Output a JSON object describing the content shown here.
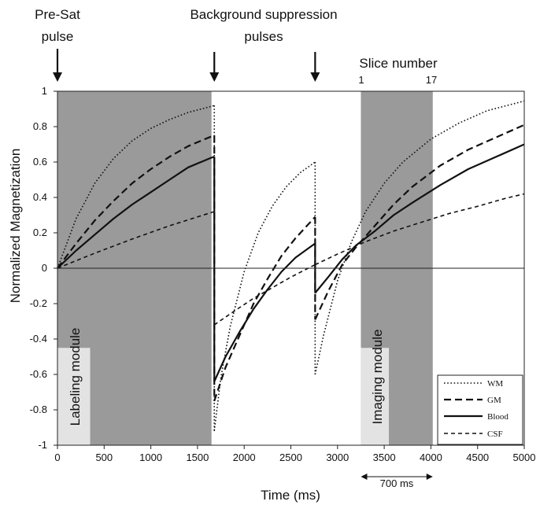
{
  "chart_data": {
    "type": "line",
    "xlabel": "Time (ms)",
    "ylabel": "Normalized Magnetization",
    "xlim": [
      0,
      5000
    ],
    "ylim": [
      -1,
      1
    ],
    "x_ticks": [
      "0",
      "500",
      "1000",
      "1500",
      "2000",
      "2500",
      "3000",
      "3500",
      "4000",
      "4500",
      "5000"
    ],
    "y_ticks": [
      "1",
      "0.8",
      "0.6",
      "0.4",
      "0.2",
      "0",
      "-0.2",
      "-0.4",
      "-0.6",
      "-0.8",
      "-1"
    ],
    "annotations": {
      "presat": [
        "Pre-Sat",
        "pulse"
      ],
      "bgs": [
        "Background suppression",
        "pulses"
      ],
      "slice_title": "Slice number",
      "slice_first": "1",
      "slice_last": "17",
      "labeling_module": "Labeling module",
      "imaging_module": "Imaging module",
      "duration": "700 ms"
    },
    "pulse_times": [
      0,
      1680,
      2760
    ],
    "shaded_regions": [
      {
        "start": 0,
        "end": 1650,
        "color": "#9a9a9a"
      },
      {
        "start": 3250,
        "end": 4020,
        "color": "#9a9a9a"
      }
    ],
    "module_boxes": [
      {
        "start": 0,
        "end": 350,
        "ybottom": -1,
        "ytop": -0.45,
        "color": "#e3e3e3"
      },
      {
        "start": 3250,
        "end": 3550,
        "ybottom": -1,
        "ytop": -0.45,
        "color": "#e3e3e3"
      }
    ],
    "legend": {
      "position": "bottom-right",
      "entries": [
        "WM",
        "GM",
        "Blood",
        "CSF"
      ]
    },
    "series": [
      {
        "name": "WM",
        "style": "dotted",
        "segments": [
          [
            [
              0,
              0
            ],
            [
              200,
              0.28
            ],
            [
              400,
              0.48
            ],
            [
              600,
              0.62
            ],
            [
              800,
              0.72
            ],
            [
              1000,
              0.79
            ],
            [
              1200,
              0.84
            ],
            [
              1400,
              0.88
            ],
            [
              1650,
              0.915
            ],
            [
              1680,
              0.92
            ]
          ],
          [
            [
              1680,
              -0.92
            ],
            [
              1750,
              -0.62
            ],
            [
              1850,
              -0.33
            ],
            [
              2000,
              -0.02
            ],
            [
              2150,
              0.2
            ],
            [
              2300,
              0.35
            ],
            [
              2450,
              0.46
            ],
            [
              2600,
              0.54
            ],
            [
              2760,
              0.6
            ]
          ],
          [
            [
              2760,
              -0.6
            ],
            [
              2850,
              -0.38
            ],
            [
              3000,
              -0.07
            ],
            [
              3150,
              0.15
            ],
            [
              3300,
              0.32
            ],
            [
              3500,
              0.48
            ],
            [
              3700,
              0.6
            ],
            [
              4000,
              0.73
            ],
            [
              4300,
              0.82
            ],
            [
              4600,
              0.89
            ],
            [
              5000,
              0.945
            ]
          ]
        ]
      },
      {
        "name": "GM",
        "style": "dashed",
        "segments": [
          [
            [
              0,
              0
            ],
            [
              200,
              0.14
            ],
            [
              400,
              0.27
            ],
            [
              600,
              0.38
            ],
            [
              800,
              0.48
            ],
            [
              1000,
              0.56
            ],
            [
              1200,
              0.63
            ],
            [
              1400,
              0.69
            ],
            [
              1650,
              0.745
            ],
            [
              1680,
              0.75
            ]
          ],
          [
            [
              1680,
              -0.75
            ],
            [
              1800,
              -0.56
            ],
            [
              1950,
              -0.38
            ],
            [
              2100,
              -0.2
            ],
            [
              2250,
              -0.06
            ],
            [
              2400,
              0.07
            ],
            [
              2550,
              0.17
            ],
            [
              2760,
              0.29
            ]
          ],
          [
            [
              2760,
              -0.29
            ],
            [
              2900,
              -0.13
            ],
            [
              3050,
              0.02
            ],
            [
              3200,
              0.12
            ],
            [
              3400,
              0.24
            ],
            [
              3600,
              0.36
            ],
            [
              3800,
              0.46
            ],
            [
              4100,
              0.58
            ],
            [
              4400,
              0.67
            ],
            [
              4700,
              0.74
            ],
            [
              5000,
              0.81
            ]
          ]
        ]
      },
      {
        "name": "Blood",
        "style": "solid",
        "segments": [
          [
            [
              0,
              0
            ],
            [
              200,
              0.1
            ],
            [
              400,
              0.19
            ],
            [
              600,
              0.28
            ],
            [
              800,
              0.36
            ],
            [
              1000,
              0.43
            ],
            [
              1200,
              0.5
            ],
            [
              1400,
              0.57
            ],
            [
              1650,
              0.625
            ],
            [
              1680,
              0.63
            ]
          ],
          [
            [
              1680,
              -0.64
            ],
            [
              1800,
              -0.5
            ],
            [
              1950,
              -0.36
            ],
            [
              2100,
              -0.23
            ],
            [
              2250,
              -0.12
            ],
            [
              2400,
              -0.02
            ],
            [
              2550,
              0.06
            ],
            [
              2760,
              0.14
            ]
          ],
          [
            [
              2760,
              -0.14
            ],
            [
              2900,
              -0.05
            ],
            [
              3050,
              0.05
            ],
            [
              3200,
              0.13
            ],
            [
              3400,
              0.21
            ],
            [
              3600,
              0.3
            ],
            [
              3800,
              0.37
            ],
            [
              4100,
              0.47
            ],
            [
              4400,
              0.56
            ],
            [
              4700,
              0.63
            ],
            [
              5000,
              0.7
            ]
          ]
        ]
      },
      {
        "name": "CSF",
        "style": "short-dash",
        "segments": [
          [
            [
              0,
              0
            ],
            [
              400,
              0.085
            ],
            [
              800,
              0.165
            ],
            [
              1200,
              0.24
            ],
            [
              1650,
              0.315
            ],
            [
              1680,
              0.32
            ]
          ],
          [
            [
              1680,
              -0.32
            ],
            [
              1900,
              -0.24
            ],
            [
              2100,
              -0.17
            ],
            [
              2300,
              -0.11
            ],
            [
              2500,
              -0.05
            ],
            [
              2760,
              0.02
            ]
          ],
          [
            [
              2760,
              0.02
            ],
            [
              3000,
              0.08
            ],
            [
              3300,
              0.15
            ],
            [
              3600,
              0.21
            ],
            [
              3900,
              0.26
            ],
            [
              4200,
              0.31
            ],
            [
              4500,
              0.35
            ],
            [
              4800,
              0.395
            ],
            [
              5000,
              0.42
            ]
          ]
        ]
      }
    ]
  }
}
